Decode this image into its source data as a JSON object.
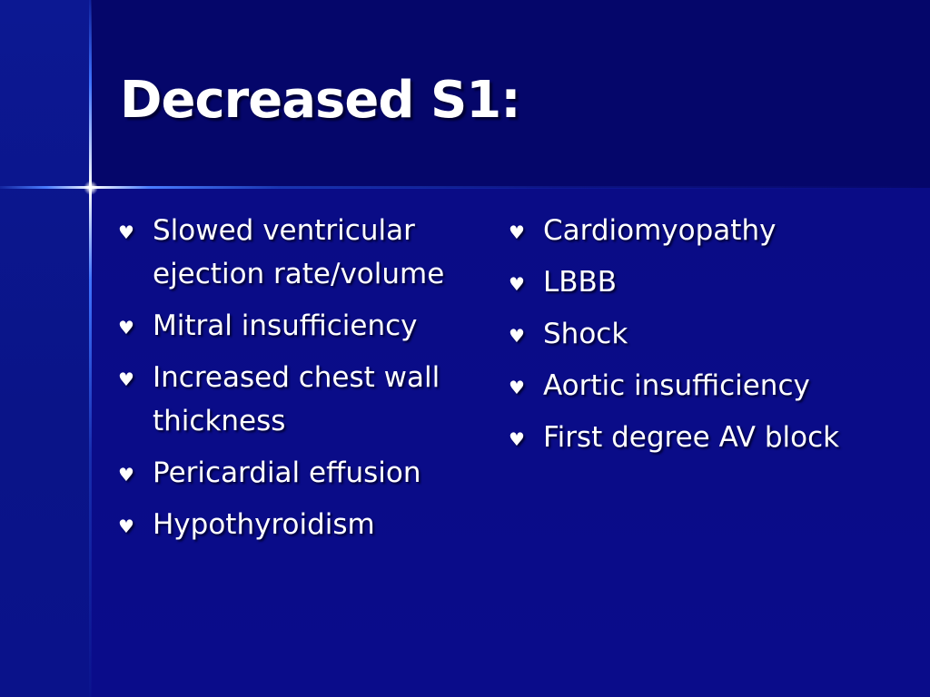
{
  "slide": {
    "title": "Decreased S1:",
    "bullet_icon": "heart-bullet-icon",
    "bullet_glyph": "♥",
    "left_items": [
      "Slowed ventricular ejection rate/volume",
      "Mitral insufficiency",
      "Increased chest wall thickness",
      "Pericardial effusion",
      "Hypothyroidism"
    ],
    "right_items": [
      "Cardiomyopathy",
      "LBBB",
      "Shock",
      "Aortic insufficiency",
      "First degree AV block"
    ]
  },
  "colors": {
    "background": "#080a7a",
    "title_band": "#05066a",
    "text": "#ffffff",
    "accent_line": "#4a7dff"
  }
}
